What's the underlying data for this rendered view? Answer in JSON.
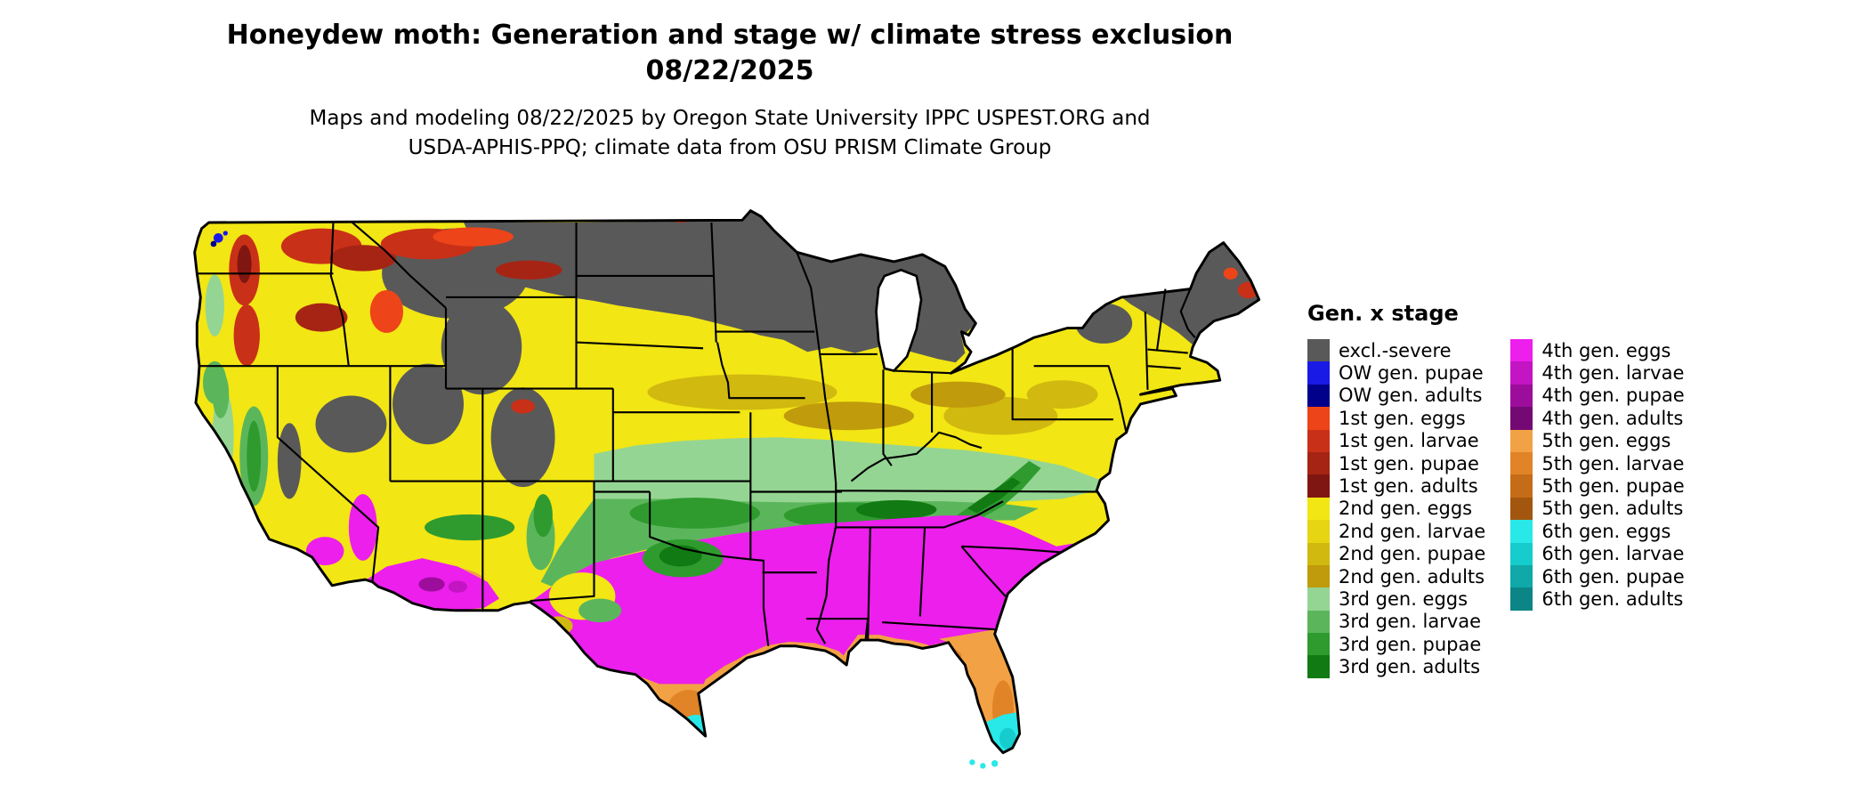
{
  "page": {
    "background": "#ffffff"
  },
  "header": {
    "title_line1": "Honeydew moth: Generation and stage w/ climate stress exclusion",
    "title_line2": "08/22/2025",
    "subtitle_line1": "Maps and modeling 08/22/2025 by Oregon State University IPPC USPEST.ORG and",
    "subtitle_line2": "USDA-APHIS-PPQ; climate data from OSU PRISM Climate Group"
  },
  "palette": {
    "excl_severe": "#595959",
    "ow_pupae": "#1a1ae6",
    "ow_adults": "#00008b",
    "g1_eggs": "#ee4419",
    "g1_larvae": "#c93018",
    "g1_pupae": "#a62414",
    "g1_adults": "#801611",
    "g2_eggs": "#f2e614",
    "g2_larvae": "#e6d512",
    "g2_pupae": "#d1b90f",
    "g2_adults": "#c09b0b",
    "g3_eggs": "#95d593",
    "g3_larvae": "#5bb65b",
    "g3_pupae": "#2f9b2f",
    "g3_adults": "#127a12",
    "g4_eggs": "#ec1fec",
    "g4_larvae": "#c315c3",
    "g4_pupae": "#9c0d9c",
    "g4_adults": "#740974",
    "g5_eggs": "#f2a244",
    "g5_larvae": "#e08427",
    "g5_pupae": "#c46c17",
    "g5_adults": "#a3560e",
    "g6_eggs": "#29e8e8",
    "g6_larvae": "#16cccc",
    "g6_pupae": "#10a8a8",
    "g6_adults": "#0b8585"
  },
  "legend": {
    "title": "Gen. x stage",
    "columns": [
      {
        "items": [
          {
            "label": "excl.-severe",
            "color": "excl_severe"
          },
          {
            "label": "OW gen. pupae",
            "color": "ow_pupae"
          },
          {
            "label": "OW gen. adults",
            "color": "ow_adults"
          },
          {
            "label": "1st gen. eggs",
            "color": "g1_eggs"
          },
          {
            "label": "1st gen. larvae",
            "color": "g1_larvae"
          },
          {
            "label": "1st gen. pupae",
            "color": "g1_pupae"
          },
          {
            "label": "1st gen. adults",
            "color": "g1_adults"
          },
          {
            "label": "2nd gen. eggs",
            "color": "g2_eggs"
          },
          {
            "label": "2nd gen. larvae",
            "color": "g2_larvae"
          },
          {
            "label": "2nd gen. pupae",
            "color": "g2_pupae"
          },
          {
            "label": "2nd gen. adults",
            "color": "g2_adults"
          },
          {
            "label": "3rd gen. eggs",
            "color": "g3_eggs"
          },
          {
            "label": "3rd gen. larvae",
            "color": "g3_larvae"
          },
          {
            "label": "3rd gen. pupae",
            "color": "g3_pupae"
          },
          {
            "label": "3rd gen. adults",
            "color": "g3_adults"
          }
        ]
      },
      {
        "items": [
          {
            "label": "4th gen. eggs",
            "color": "g4_eggs"
          },
          {
            "label": "4th gen. larvae",
            "color": "g4_larvae"
          },
          {
            "label": "4th gen. pupae",
            "color": "g4_pupae"
          },
          {
            "label": "4th gen. adults",
            "color": "g4_adults"
          },
          {
            "label": "5th gen. eggs",
            "color": "g5_eggs"
          },
          {
            "label": "5th gen. larvae",
            "color": "g5_larvae"
          },
          {
            "label": "5th gen. pupae",
            "color": "g5_pupae"
          },
          {
            "label": "5th gen. adults",
            "color": "g5_adults"
          },
          {
            "label": "6th gen. eggs",
            "color": "g6_eggs"
          },
          {
            "label": "6th gen. larvae",
            "color": "g6_larvae"
          },
          {
            "label": "6th gen. pupae",
            "color": "g6_pupae"
          },
          {
            "label": "6th gen. adults",
            "color": "g6_adults"
          }
        ]
      }
    ]
  },
  "map": {
    "region": "Continental United States",
    "water_color": "#ffffff",
    "boundary_color": "#000000"
  }
}
